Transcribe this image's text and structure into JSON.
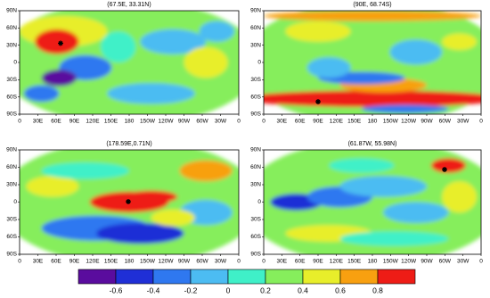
{
  "panels": [
    {
      "title": "(67.5E, 33.31N)"
    },
    {
      "title": "(90E, 68.74S)"
    },
    {
      "title": "(178.59E,0.71N)"
    },
    {
      "title": "(61.87W, 55.98N)"
    }
  ],
  "axes": {
    "x_labels": [
      "0",
      "30E",
      "60E",
      "90E",
      "120E",
      "150E",
      "180",
      "150W",
      "120W",
      "90W",
      "60W",
      "30W",
      "0"
    ],
    "y_labels": [
      "90N",
      "60N",
      "30N",
      "0",
      "30S",
      "60S",
      "90S"
    ]
  },
  "colorbar": {
    "colors": [
      "#5a0c9e",
      "#1f2fd6",
      "#2f78f0",
      "#4cbcf2",
      "#3ff0c8",
      "#86ee5c",
      "#e8ee2a",
      "#f8a010",
      "#ee1c16"
    ],
    "labels": [
      "-0.6",
      "-0.4",
      "-0.2",
      "0",
      "0.2",
      "0.4",
      "0.6",
      "0.8"
    ]
  }
}
